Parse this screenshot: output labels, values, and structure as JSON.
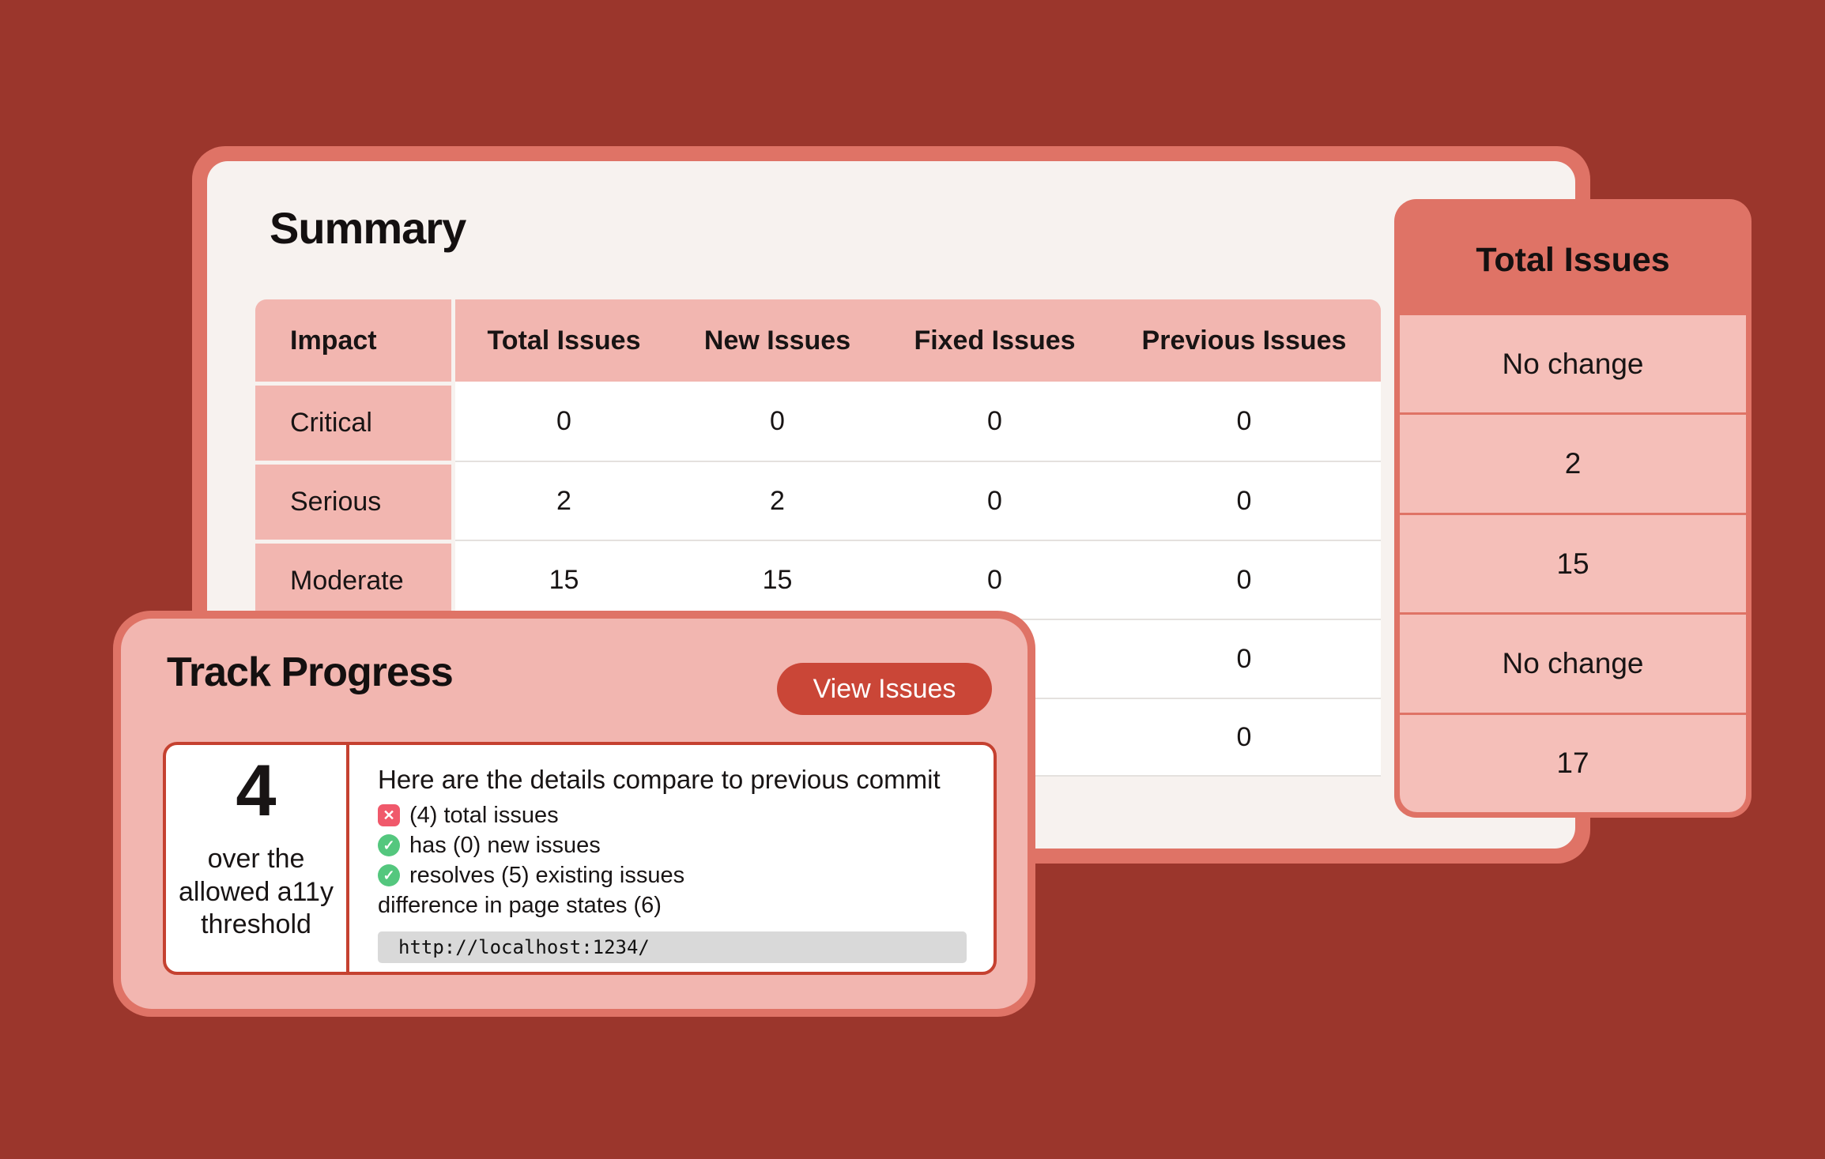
{
  "colors": {
    "background": "#9B362C",
    "card_border_salmon": "#DF7366",
    "card_surface": "#F7F2EF",
    "pink": "#F2B6B0",
    "pink_light": "#F5BFB9",
    "accent_red": "#CA4637",
    "panel_border_red": "#C54130",
    "success_green": "#54C77E",
    "error_red": "#F0596B",
    "code_background": "#D9D9D9"
  },
  "summary_card": {
    "title": "Summary",
    "table": {
      "columns": [
        "Impact",
        "Total Issues",
        "New Issues",
        "Fixed Issues",
        "Previous Issues"
      ],
      "rows": [
        {
          "impact": "Critical",
          "total": "0",
          "new": "0",
          "fixed": "0",
          "previous": "0"
        },
        {
          "impact": "Serious",
          "total": "2",
          "new": "2",
          "fixed": "0",
          "previous": "0"
        },
        {
          "impact": "Moderate",
          "total": "15",
          "new": "15",
          "fixed": "0",
          "previous": "0"
        },
        {
          "impact": "",
          "total": "",
          "new": "",
          "fixed": "",
          "previous": "0"
        },
        {
          "impact": "",
          "total": "",
          "new": "",
          "fixed": "",
          "previous": "0"
        }
      ]
    }
  },
  "total_issues_card": {
    "title": "Total Issues",
    "rows": [
      "No change",
      "2",
      "15",
      "No change",
      "17"
    ]
  },
  "track_progress_card": {
    "title": "Track Progress",
    "view_issues_button": "View Issues",
    "threshold": {
      "value": "4",
      "label": "over the allowed a11y threshold"
    },
    "details": {
      "heading": "Here are the details compare to previous commit",
      "items": [
        {
          "icon": "x-icon",
          "text": "(4) total issues"
        },
        {
          "icon": "check-icon",
          "text": "has (0) new issues"
        },
        {
          "icon": "check-icon",
          "text": "resolves (5) existing issues"
        },
        {
          "icon": "none",
          "text": "difference in page states (6)"
        }
      ],
      "url": "http://localhost:1234/"
    }
  }
}
